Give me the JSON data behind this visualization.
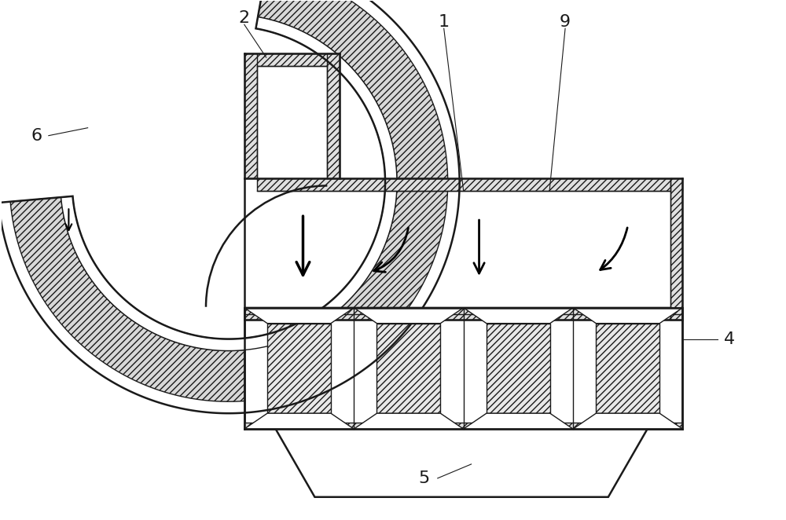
{
  "bg_color": "#ffffff",
  "line_color": "#1a1a1a",
  "fig_width": 10.0,
  "fig_height": 6.62,
  "lw_thick": 1.8,
  "lw_thin": 1.0,
  "hatch_density": "////",
  "label_fontsize": 16
}
